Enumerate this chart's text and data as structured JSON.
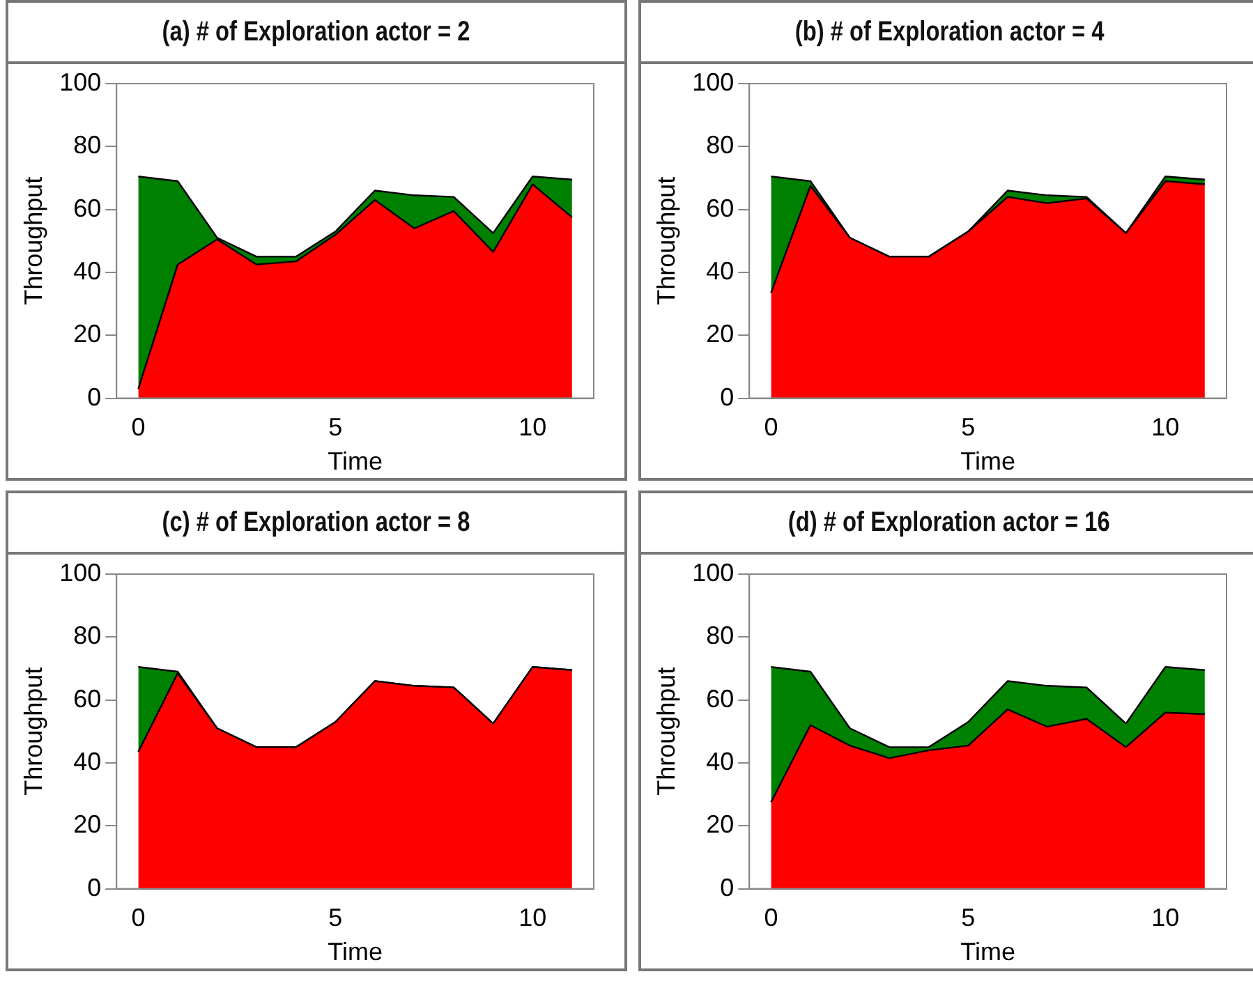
{
  "chart_data": [
    {
      "type": "area",
      "title": "(a) # of Exploration actor = 2",
      "xlabel": "Time",
      "ylabel": "Throughput",
      "stacked": true,
      "x": [
        0,
        1,
        2,
        3,
        4,
        5,
        6,
        7,
        8,
        9,
        10,
        11
      ],
      "xlim": [
        -0.55,
        11.55
      ],
      "ylim": [
        0,
        100
      ],
      "xticks": [
        0,
        5,
        10
      ],
      "yticks": [
        0,
        20,
        40,
        60,
        80,
        100
      ],
      "grid": false,
      "legend": false,
      "series": [
        {
          "color": "#ff0000",
          "values": [
            3,
            42.5,
            50.5,
            42.5,
            43.5,
            52,
            63,
            54,
            59.5,
            46.5,
            68,
            57.5
          ]
        },
        {
          "color": "#008000",
          "values": [
            67.5,
            26.5,
            0.5,
            2.5,
            1.5,
            1,
            3,
            10.5,
            4.5,
            6,
            2.5,
            12
          ]
        }
      ]
    },
    {
      "type": "area",
      "title": "(b) # of Exploration actor = 4",
      "xlabel": "Time",
      "ylabel": "Throughput",
      "stacked": true,
      "x": [
        0,
        1,
        2,
        3,
        4,
        5,
        6,
        7,
        8,
        9,
        10,
        11
      ],
      "xlim": [
        -0.55,
        11.55
      ],
      "ylim": [
        0,
        100
      ],
      "xticks": [
        0,
        5,
        10
      ],
      "yticks": [
        0,
        20,
        40,
        60,
        80,
        100
      ],
      "grid": false,
      "legend": false,
      "series": [
        {
          "color": "#ff0000",
          "values": [
            33.5,
            67.5,
            51,
            45,
            45,
            53,
            64,
            62,
            63.5,
            52.5,
            69,
            68
          ]
        },
        {
          "color": "#008000",
          "values": [
            37,
            1.5,
            0,
            0,
            0,
            0,
            2,
            2.5,
            0.5,
            0,
            1.5,
            1.5
          ]
        }
      ]
    },
    {
      "type": "area",
      "title": "(c) # of Exploration actor = 8",
      "xlabel": "Time",
      "ylabel": "Throughput",
      "stacked": true,
      "x": [
        0,
        1,
        2,
        3,
        4,
        5,
        6,
        7,
        8,
        9,
        10,
        11
      ],
      "xlim": [
        -0.55,
        11.55
      ],
      "ylim": [
        0,
        100
      ],
      "xticks": [
        0,
        5,
        10
      ],
      "yticks": [
        0,
        20,
        40,
        60,
        80,
        100
      ],
      "grid": false,
      "legend": false,
      "series": [
        {
          "color": "#ff0000",
          "values": [
            43.5,
            68.5,
            51,
            45,
            45,
            53,
            66,
            64.5,
            64,
            52.5,
            70.5,
            69.5
          ]
        },
        {
          "color": "#008000",
          "values": [
            27,
            0.5,
            0,
            0,
            0,
            0,
            0,
            0,
            0,
            0,
            0,
            0
          ]
        }
      ]
    },
    {
      "type": "area",
      "title": "(d) # of Exploration actor = 16",
      "xlabel": "Time",
      "ylabel": "Throughput",
      "stacked": true,
      "x": [
        0,
        1,
        2,
        3,
        4,
        5,
        6,
        7,
        8,
        9,
        10,
        11
      ],
      "xlim": [
        -0.55,
        11.55
      ],
      "ylim": [
        0,
        100
      ],
      "xticks": [
        0,
        5,
        10
      ],
      "yticks": [
        0,
        20,
        40,
        60,
        80,
        100
      ],
      "grid": false,
      "legend": false,
      "series": [
        {
          "color": "#ff0000",
          "values": [
            27.5,
            52,
            45.5,
            41.5,
            44,
            45.5,
            57,
            51.5,
            54,
            45,
            56,
            55.5
          ]
        },
        {
          "color": "#008000",
          "values": [
            43,
            17,
            5.5,
            3.5,
            1,
            7.5,
            9,
            13,
            10,
            7.5,
            14.5,
            14
          ]
        }
      ]
    }
  ]
}
